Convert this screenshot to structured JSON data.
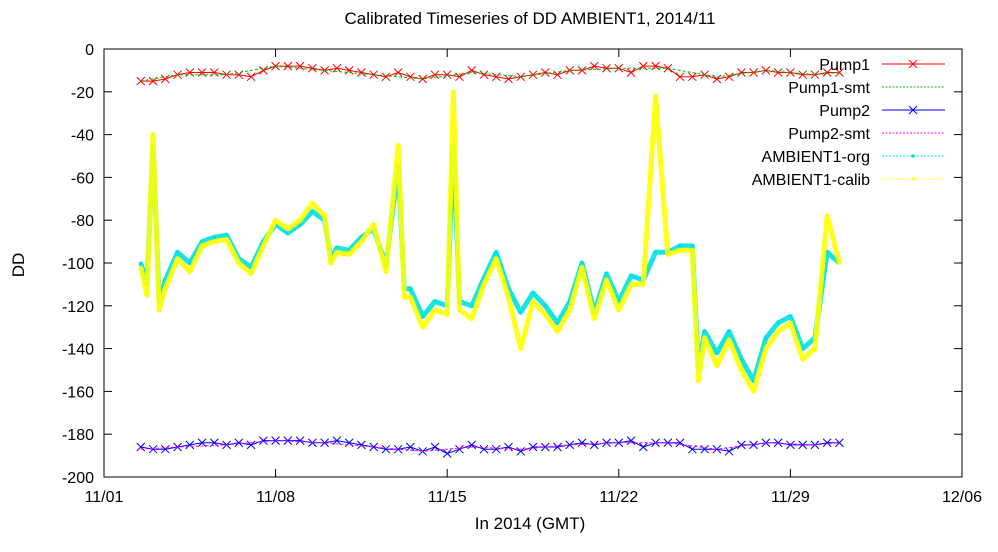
{
  "chart_data": {
    "type": "line",
    "title": "Calibrated Timeseries of DD AMBIENT1, 2014/11",
    "xlabel": "In 2014 (GMT)",
    "ylabel": "DD",
    "ylim": [
      -200,
      0
    ],
    "xlim": [
      "2014-11-01",
      "2014-12-06"
    ],
    "x_ticks": [
      "11/01",
      "11/08",
      "11/15",
      "11/22",
      "11/29",
      "12/06"
    ],
    "y_ticks": [
      0,
      -20,
      -40,
      -60,
      -80,
      -100,
      -120,
      -140,
      -160,
      -180,
      -200
    ],
    "grid": false,
    "legend_position": "top-right",
    "series": [
      {
        "name": "Pump1",
        "color": "#ff0000",
        "marker": "x",
        "x": [
          "2014-11-02 12:00",
          "2014-11-03 00:00",
          "2014-11-03 12:00",
          "2014-11-04 00:00",
          "2014-11-04 12:00",
          "2014-11-05 00:00",
          "2014-11-05 12:00",
          "2014-11-06 00:00",
          "2014-11-06 12:00",
          "2014-11-07 00:00",
          "2014-11-07 12:00",
          "2014-11-08 00:00",
          "2014-11-08 12:00",
          "2014-11-09 00:00",
          "2014-11-09 12:00",
          "2014-11-10 00:00",
          "2014-11-10 12:00",
          "2014-11-11 00:00",
          "2014-11-11 12:00",
          "2014-11-12 00:00",
          "2014-11-12 12:00",
          "2014-11-13 00:00",
          "2014-11-13 12:00",
          "2014-11-14 00:00",
          "2014-11-14 12:00",
          "2014-11-15 00:00",
          "2014-11-15 12:00",
          "2014-11-16 00:00",
          "2014-11-16 12:00",
          "2014-11-17 00:00",
          "2014-11-17 12:00",
          "2014-11-18 00:00",
          "2014-11-18 12:00",
          "2014-11-19 00:00",
          "2014-11-19 12:00",
          "2014-11-20 00:00",
          "2014-11-20 12:00",
          "2014-11-21 00:00",
          "2014-11-21 12:00",
          "2014-11-22 00:00",
          "2014-11-22 12:00",
          "2014-11-23 00:00",
          "2014-11-23 12:00",
          "2014-11-24 00:00",
          "2014-11-24 12:00",
          "2014-11-25 00:00",
          "2014-11-25 12:00",
          "2014-11-26 00:00",
          "2014-11-26 12:00",
          "2014-11-27 00:00",
          "2014-11-27 12:00",
          "2014-11-28 00:00",
          "2014-11-28 12:00",
          "2014-11-29 00:00",
          "2014-11-29 12:00",
          "2014-11-30 00:00",
          "2014-11-30 12:00",
          "2014-12-01 00:00"
        ],
        "y": [
          -15,
          -15,
          -14,
          -12,
          -11,
          -11,
          -11,
          -12,
          -12,
          -13,
          -10,
          -8,
          -8,
          -8,
          -9,
          -10,
          -9,
          -10,
          -11,
          -12,
          -13,
          -11,
          -13,
          -14,
          -12,
          -12,
          -13,
          -10,
          -12,
          -13,
          -14,
          -13,
          -12,
          -11,
          -12,
          -10,
          -10,
          -8,
          -9,
          -9,
          -11,
          -8,
          -8,
          -9,
          -13,
          -13,
          -12,
          -14,
          -13,
          -11,
          -11,
          -10,
          -11,
          -11,
          -12,
          -12,
          -11,
          -11
        ]
      },
      {
        "name": "Pump1-smt",
        "color": "#00c000",
        "marker": "none",
        "x": [
          "2014-11-02 12:00",
          "2014-11-04 00:00",
          "2014-11-06 00:00",
          "2014-11-08 00:00",
          "2014-11-10 00:00",
          "2014-11-12 00:00",
          "2014-11-14 00:00",
          "2014-11-16 00:00",
          "2014-11-18 00:00",
          "2014-11-20 00:00",
          "2014-11-22 00:00",
          "2014-11-24 00:00",
          "2014-11-26 00:00",
          "2014-11-28 00:00",
          "2014-11-30 00:00",
          "2014-12-01 00:00"
        ],
        "y": [
          -15,
          -12,
          -12,
          -8,
          -10,
          -12,
          -14,
          -11,
          -13,
          -10,
          -9,
          -9,
          -13,
          -10,
          -12,
          -11
        ]
      },
      {
        "name": "Pump2",
        "color": "#0000ff",
        "marker": "x",
        "x": [
          "2014-11-02 12:00",
          "2014-11-03 00:00",
          "2014-11-03 12:00",
          "2014-11-04 00:00",
          "2014-11-04 12:00",
          "2014-11-05 00:00",
          "2014-11-05 12:00",
          "2014-11-06 00:00",
          "2014-11-06 12:00",
          "2014-11-07 00:00",
          "2014-11-07 12:00",
          "2014-11-08 00:00",
          "2014-11-08 12:00",
          "2014-11-09 00:00",
          "2014-11-09 12:00",
          "2014-11-10 00:00",
          "2014-11-10 12:00",
          "2014-11-11 00:00",
          "2014-11-11 12:00",
          "2014-11-12 00:00",
          "2014-11-12 12:00",
          "2014-11-13 00:00",
          "2014-11-13 12:00",
          "2014-11-14 00:00",
          "2014-11-14 12:00",
          "2014-11-15 00:00",
          "2014-11-15 12:00",
          "2014-11-16 00:00",
          "2014-11-16 12:00",
          "2014-11-17 00:00",
          "2014-11-17 12:00",
          "2014-11-18 00:00",
          "2014-11-18 12:00",
          "2014-11-19 00:00",
          "2014-11-19 12:00",
          "2014-11-20 00:00",
          "2014-11-20 12:00",
          "2014-11-21 00:00",
          "2014-11-21 12:00",
          "2014-11-22 00:00",
          "2014-11-22 12:00",
          "2014-11-23 00:00",
          "2014-11-23 12:00",
          "2014-11-24 00:00",
          "2014-11-24 12:00",
          "2014-11-25 00:00",
          "2014-11-25 12:00",
          "2014-11-26 00:00",
          "2014-11-26 12:00",
          "2014-11-27 00:00",
          "2014-11-27 12:00",
          "2014-11-28 00:00",
          "2014-11-28 12:00",
          "2014-11-29 00:00",
          "2014-11-29 12:00",
          "2014-11-30 00:00",
          "2014-11-30 12:00",
          "2014-12-01 00:00"
        ],
        "y": [
          -186,
          -187,
          -187,
          -186,
          -185,
          -184,
          -184,
          -185,
          -184,
          -185,
          -183,
          -183,
          -183,
          -183,
          -184,
          -184,
          -183,
          -184,
          -185,
          -186,
          -187,
          -187,
          -186,
          -188,
          -186,
          -189,
          -187,
          -185,
          -187,
          -187,
          -186,
          -188,
          -186,
          -186,
          -186,
          -185,
          -184,
          -185,
          -184,
          -184,
          -183,
          -186,
          -184,
          -184,
          -184,
          -187,
          -187,
          -187,
          -188,
          -185,
          -185,
          -184,
          -184,
          -185,
          -185,
          -185,
          -184,
          -184
        ]
      },
      {
        "name": "Pump2-smt",
        "color": "#ff00ff",
        "marker": "none",
        "x": [
          "2014-11-02 12:00",
          "2014-11-04 00:00",
          "2014-11-06 00:00",
          "2014-11-08 00:00",
          "2014-11-10 00:00",
          "2014-11-12 00:00",
          "2014-11-14 00:00",
          "2014-11-16 00:00",
          "2014-11-18 00:00",
          "2014-11-20 00:00",
          "2014-11-22 00:00",
          "2014-11-24 00:00",
          "2014-11-26 00:00",
          "2014-11-28 00:00",
          "2014-11-30 00:00",
          "2014-12-01 00:00"
        ],
        "y": [
          -187,
          -186,
          -185,
          -183,
          -184,
          -186,
          -188,
          -186,
          -187,
          -185,
          -184,
          -184,
          -187,
          -184,
          -185,
          -184
        ]
      },
      {
        "name": "AMBIENT1-org",
        "color": "#00e0e0",
        "marker": "dot",
        "x": [
          "2014-11-02 12:00",
          "2014-11-02 18:00",
          "2014-11-03 00:00",
          "2014-11-03 06:00",
          "2014-11-03 12:00",
          "2014-11-04 00:00",
          "2014-11-04 12:00",
          "2014-11-05 00:00",
          "2014-11-05 12:00",
          "2014-11-06 00:00",
          "2014-11-06 12:00",
          "2014-11-07 00:00",
          "2014-11-07 12:00",
          "2014-11-08 00:00",
          "2014-11-08 12:00",
          "2014-11-09 00:00",
          "2014-11-09 12:00",
          "2014-11-10 00:00",
          "2014-11-10 06:00",
          "2014-11-10 12:00",
          "2014-11-11 00:00",
          "2014-11-11 12:00",
          "2014-11-12 00:00",
          "2014-11-12 12:00",
          "2014-11-13 00:00",
          "2014-11-13 06:00",
          "2014-11-13 12:00",
          "2014-11-14 00:00",
          "2014-11-14 12:00",
          "2014-11-15 00:00",
          "2014-11-15 06:00",
          "2014-11-15 12:00",
          "2014-11-16 00:00",
          "2014-11-16 12:00",
          "2014-11-17 00:00",
          "2014-11-17 12:00",
          "2014-11-18 00:00",
          "2014-11-18 12:00",
          "2014-11-19 00:00",
          "2014-11-19 12:00",
          "2014-11-20 00:00",
          "2014-11-20 12:00",
          "2014-11-21 00:00",
          "2014-11-21 12:00",
          "2014-11-22 00:00",
          "2014-11-22 12:00",
          "2014-11-23 00:00",
          "2014-11-23 12:00",
          "2014-11-24 00:00",
          "2014-11-24 12:00",
          "2014-11-25 00:00",
          "2014-11-25 06:00",
          "2014-11-25 12:00",
          "2014-11-26 00:00",
          "2014-11-26 12:00",
          "2014-11-27 00:00",
          "2014-11-27 12:00",
          "2014-11-28 00:00",
          "2014-11-28 12:00",
          "2014-11-29 00:00",
          "2014-11-29 12:00",
          "2014-11-30 00:00",
          "2014-11-30 12:00",
          "2014-12-01 00:00"
        ],
        "y": [
          -100,
          -110,
          -45,
          -118,
          -108,
          -95,
          -100,
          -90,
          -88,
          -87,
          -98,
          -102,
          -90,
          -82,
          -86,
          -82,
          -76,
          -80,
          -98,
          -93,
          -94,
          -88,
          -84,
          -101,
          -55,
          -112,
          -112,
          -125,
          -118,
          -120,
          -45,
          -118,
          -120,
          -107,
          -95,
          -112,
          -123,
          -114,
          -120,
          -128,
          -118,
          -100,
          -123,
          -105,
          -118,
          -106,
          -108,
          -95,
          -95,
          -92,
          -92,
          -150,
          -132,
          -142,
          -132,
          -145,
          -155,
          -135,
          -128,
          -125,
          -140,
          -135,
          -95,
          -100
        ]
      },
      {
        "name": "AMBIENT1-calib",
        "color": "#ffff00",
        "marker": "dot",
        "x": [
          "2014-11-02 12:00",
          "2014-11-02 18:00",
          "2014-11-03 00:00",
          "2014-11-03 06:00",
          "2014-11-03 12:00",
          "2014-11-04 00:00",
          "2014-11-04 12:00",
          "2014-11-05 00:00",
          "2014-11-05 12:00",
          "2014-11-06 00:00",
          "2014-11-06 12:00",
          "2014-11-07 00:00",
          "2014-11-07 12:00",
          "2014-11-08 00:00",
          "2014-11-08 12:00",
          "2014-11-09 00:00",
          "2014-11-09 12:00",
          "2014-11-10 00:00",
          "2014-11-10 06:00",
          "2014-11-10 12:00",
          "2014-11-11 00:00",
          "2014-11-11 12:00",
          "2014-11-12 00:00",
          "2014-11-12 12:00",
          "2014-11-13 00:00",
          "2014-11-13 06:00",
          "2014-11-13 12:00",
          "2014-11-14 00:00",
          "2014-11-14 12:00",
          "2014-11-15 00:00",
          "2014-11-15 06:00",
          "2014-11-15 12:00",
          "2014-11-16 00:00",
          "2014-11-16 12:00",
          "2014-11-17 00:00",
          "2014-11-17 12:00",
          "2014-11-18 00:00",
          "2014-11-18 12:00",
          "2014-11-19 00:00",
          "2014-11-19 12:00",
          "2014-11-20 00:00",
          "2014-11-20 12:00",
          "2014-11-21 00:00",
          "2014-11-21 12:00",
          "2014-11-22 00:00",
          "2014-11-22 12:00",
          "2014-11-23 00:00",
          "2014-11-23 12:00",
          "2014-11-24 00:00",
          "2014-11-24 12:00",
          "2014-11-25 00:00",
          "2014-11-25 06:00",
          "2014-11-25 12:00",
          "2014-11-26 00:00",
          "2014-11-26 12:00",
          "2014-11-27 00:00",
          "2014-11-27 12:00",
          "2014-11-28 00:00",
          "2014-11-28 12:00",
          "2014-11-29 00:00",
          "2014-11-29 12:00",
          "2014-11-30 00:00",
          "2014-11-30 12:00",
          "2014-12-01 00:00"
        ],
        "y": [
          -102,
          -115,
          -40,
          -122,
          -112,
          -98,
          -104,
          -92,
          -90,
          -89,
          -100,
          -105,
          -92,
          -80,
          -84,
          -80,
          -72,
          -78,
          -100,
          -95,
          -96,
          -90,
          -82,
          -104,
          -45,
          -116,
          -116,
          -130,
          -122,
          -124,
          -20,
          -122,
          -126,
          -110,
          -98,
          -116,
          -140,
          -118,
          -124,
          -132,
          -122,
          -102,
          -126,
          -108,
          -122,
          -110,
          -110,
          -22,
          -96,
          -94,
          -94,
          -155,
          -135,
          -148,
          -136,
          -150,
          -160,
          -140,
          -132,
          -128,
          -145,
          -140,
          -78,
          -100
        ]
      }
    ]
  }
}
